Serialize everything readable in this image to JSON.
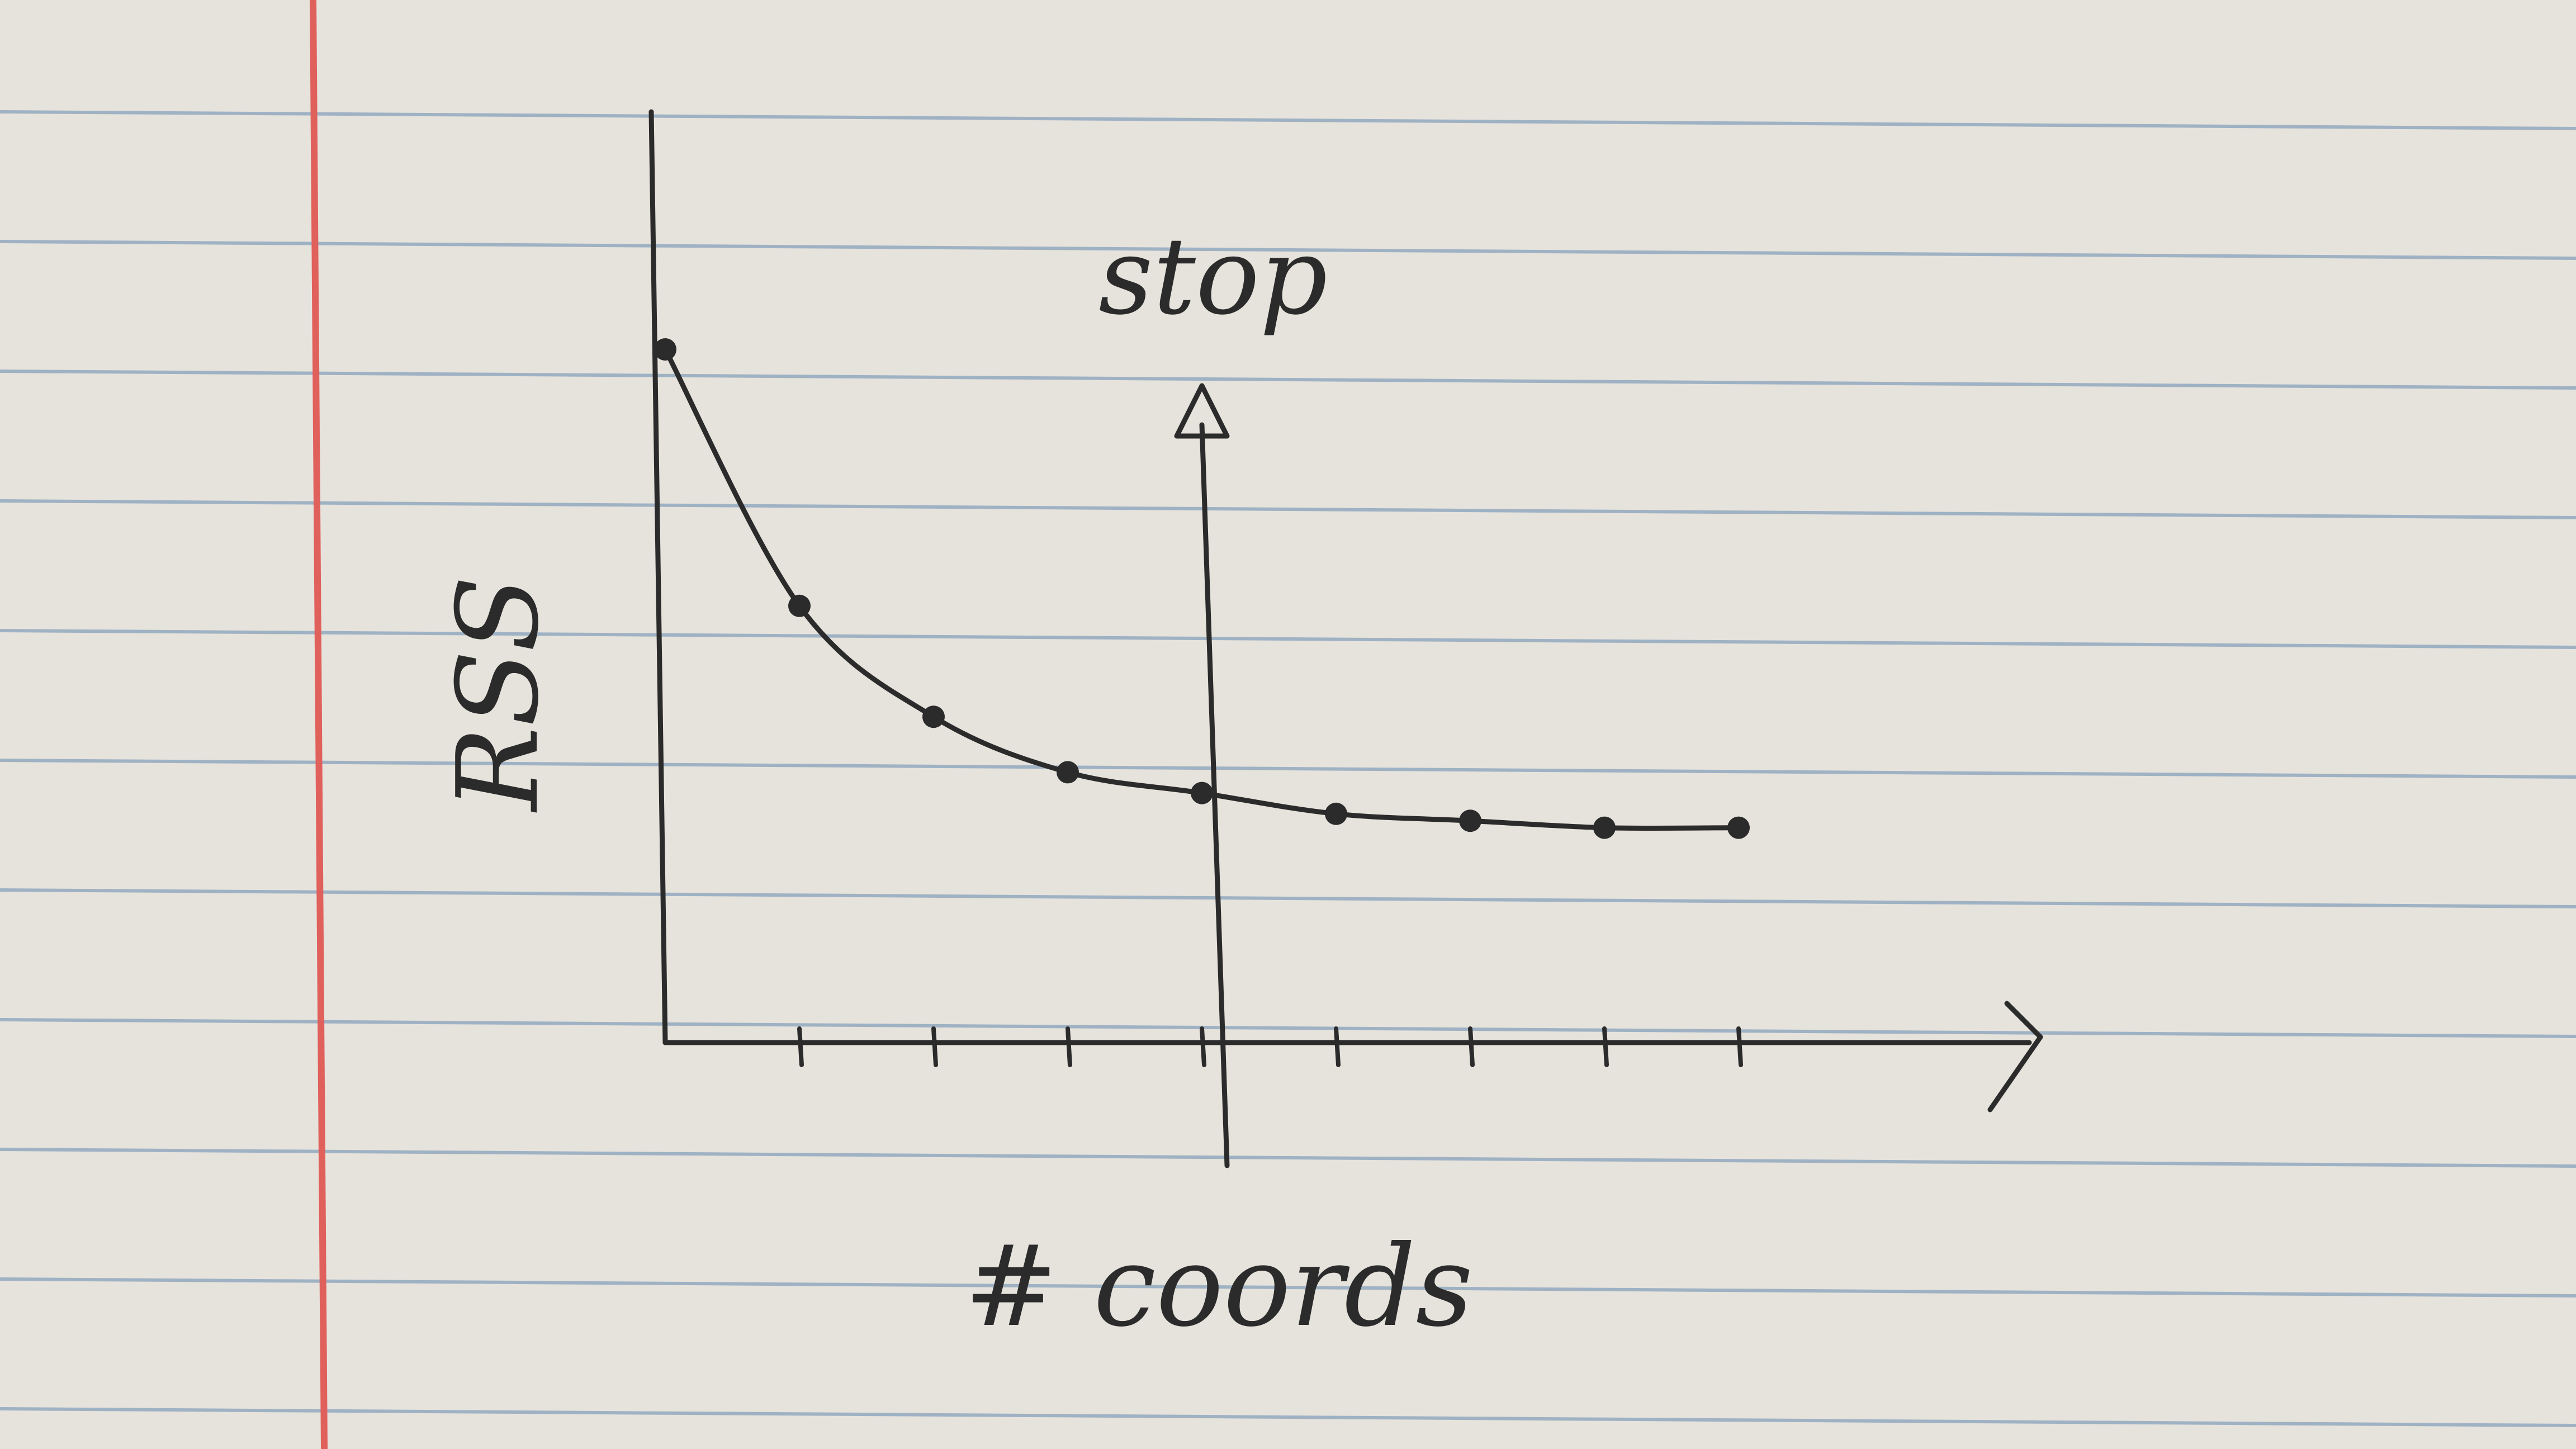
{
  "paper": {
    "background_color": "#e6e3dc",
    "rule_color": "#9fb2c4",
    "margin_color": "#e0605c",
    "ink_color": "#2b2b2b"
  },
  "chart_data": {
    "type": "line",
    "xlabel": "# coords",
    "ylabel": "RSS",
    "x": [
      0,
      1,
      2,
      3,
      4,
      5,
      6,
      7,
      8
    ],
    "y": [
      100,
      63,
      47,
      39,
      36,
      33,
      32,
      31,
      31
    ],
    "xlim": [
      0,
      10
    ],
    "ylim": [
      0,
      115
    ],
    "x_ticks": [
      1,
      2,
      3,
      4,
      5,
      6,
      7,
      8
    ],
    "tick_labels_printed": false,
    "grid": false,
    "legend": "none",
    "annotations": [
      {
        "text": "stop",
        "x": 4,
        "kind": "vertical-arrow"
      }
    ]
  }
}
